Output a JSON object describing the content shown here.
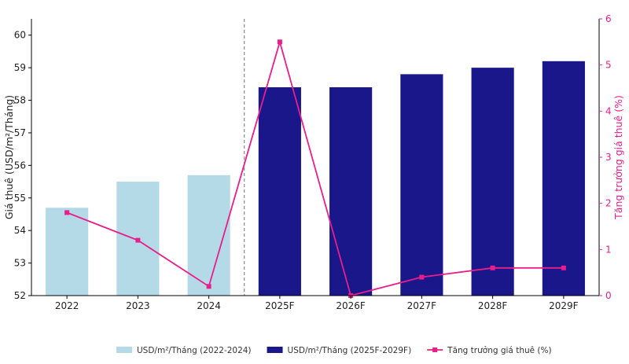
{
  "chart_data": {
    "type": "bar",
    "categories": [
      "2022",
      "2023",
      "2024",
      "2025F",
      "2026F",
      "2027F",
      "2028F",
      "2029F"
    ],
    "series": [
      {
        "name": "USD/m²/Tháng (2022-2024)",
        "type": "bar",
        "axis": "left",
        "color": "#b4dae7",
        "values": [
          54.7,
          55.5,
          55.7,
          null,
          null,
          null,
          null,
          null
        ]
      },
      {
        "name": "USD/m²/Tháng (2025F-2029F)",
        "type": "bar",
        "axis": "left",
        "color": "#19178a",
        "values": [
          null,
          null,
          null,
          58.4,
          58.4,
          58.8,
          59.0,
          59.2
        ]
      },
      {
        "name": "Tăng trưởng giá thuê (%)",
        "type": "line",
        "axis": "right",
        "color": "#e91e8c",
        "marker": "square",
        "values": [
          1.8,
          1.2,
          0.2,
          5.5,
          0.0,
          0.4,
          0.6,
          0.6
        ]
      }
    ],
    "ylabel": "Giá thuê (USD/m²/Tháng)",
    "ylim": [
      52,
      60.5
    ],
    "yticks": [
      "52",
      "53",
      "54",
      "55",
      "56",
      "57",
      "58",
      "59",
      "60"
    ],
    "y2label": "Tăng trưởng giá thuê (%)",
    "y2lim": [
      0,
      6
    ],
    "y2ticks": [
      "0",
      "1",
      "2",
      "3",
      "4",
      "5",
      "6"
    ],
    "divider_after_category": "2024",
    "grid": false,
    "legend": "bottom-center"
  }
}
